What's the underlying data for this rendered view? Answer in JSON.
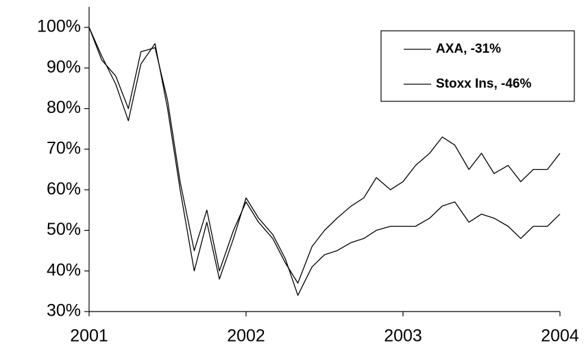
{
  "chart_data": {
    "type": "line",
    "x": [
      2001.0,
      2001.08,
      2001.17,
      2001.25,
      2001.33,
      2001.42,
      2001.5,
      2001.58,
      2001.67,
      2001.75,
      2001.83,
      2001.92,
      2002.0,
      2002.08,
      2002.17,
      2002.25,
      2002.33,
      2002.42,
      2002.5,
      2002.58,
      2002.67,
      2002.75,
      2002.83,
      2002.92,
      2003.0,
      2003.08,
      2003.17,
      2003.25,
      2003.33,
      2003.42,
      2003.5,
      2003.58,
      2003.67,
      2003.75,
      2003.83,
      2003.92,
      2004.0
    ],
    "series": [
      {
        "name": "AXA, -31%",
        "color": "#000000",
        "values": [
          100,
          92,
          88,
          80,
          94,
          95,
          82,
          62,
          45,
          55,
          40,
          50,
          57,
          52,
          48,
          42,
          37,
          46,
          50,
          53,
          56,
          58,
          63,
          60,
          62,
          66,
          69,
          73,
          71,
          65,
          69,
          64,
          66,
          62,
          65,
          65,
          69
        ]
      },
      {
        "name": "Stoxx Ins, -46%",
        "color": "#000000",
        "values": [
          100,
          93,
          86,
          77,
          91,
          96,
          80,
          60,
          40,
          52,
          38,
          48,
          58,
          53,
          49,
          43,
          34,
          41,
          44,
          45,
          47,
          48,
          50,
          51,
          51,
          51,
          53,
          56,
          57,
          52,
          54,
          53,
          51,
          48,
          51,
          51,
          54
        ]
      }
    ],
    "xlim": [
      2001,
      2004
    ],
    "xticks": [
      2001,
      2002,
      2003,
      2004
    ],
    "ylim": [
      30,
      100
    ],
    "yticks": [
      {
        "value": 30,
        "label": "30%"
      },
      {
        "value": 40,
        "label": "40%"
      },
      {
        "value": 50,
        "label": "50%"
      },
      {
        "value": 60,
        "label": "60%"
      },
      {
        "value": 70,
        "label": "70%"
      },
      {
        "value": 80,
        "label": "80%"
      },
      {
        "value": 90,
        "label": "90%"
      },
      {
        "value": 100,
        "label": "100%"
      }
    ],
    "grid": false,
    "legend": "top-right"
  }
}
